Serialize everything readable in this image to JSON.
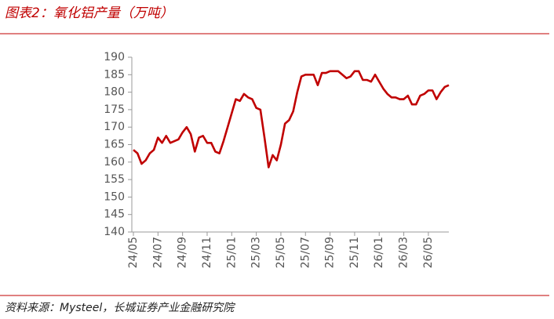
{
  "chart_data": {
    "type": "line",
    "title": "图表2：氧化铝产量（万吨）",
    "source": "资料来源：Mysteel，长城证券产业金融研究院",
    "categories": [
      "24/05",
      null,
      null,
      null,
      null,
      null,
      "24/07",
      null,
      null,
      null,
      null,
      null,
      "24/09",
      null,
      null,
      null,
      null,
      null,
      "24/11",
      null,
      null,
      null,
      null,
      null,
      "25/01",
      null,
      null,
      null,
      null,
      null,
      "25/03",
      null,
      null,
      null,
      null,
      null,
      "25/05",
      null,
      null,
      null,
      null,
      null,
      "25/07",
      null,
      null,
      null,
      null,
      null,
      "25/09",
      null,
      null,
      null,
      null,
      null,
      "25/11",
      null,
      null,
      null,
      null,
      null,
      "26/01",
      null,
      null,
      null,
      null,
      null,
      "26/03",
      null,
      null,
      null,
      null,
      null,
      "26/05",
      null,
      null,
      null,
      null,
      null
    ],
    "values": [
      163.5,
      162.5,
      159.5,
      160.5,
      162.5,
      163.5,
      167,
      165.5,
      167.5,
      165.5,
      166,
      166.5,
      168.5,
      170,
      168,
      163,
      167,
      167.5,
      165.5,
      165.5,
      163,
      162.5,
      166,
      170,
      174,
      178,
      177.5,
      179.5,
      178.5,
      178,
      175.5,
      175,
      167,
      158.5,
      162,
      160.5,
      165,
      171,
      172,
      174.5,
      180,
      184.5,
      185,
      185,
      185,
      182,
      185.5,
      185.5,
      186,
      186,
      186,
      185,
      184,
      184.5,
      186,
      186,
      183.5,
      183.5,
      183,
      185,
      183,
      181,
      179.5,
      178.5,
      178.5,
      178,
      178,
      179,
      176.5,
      176.5,
      179,
      179.5,
      180.5,
      180.5,
      178,
      180,
      181.5,
      182
    ],
    "color": "#c00000",
    "ylim": [
      140,
      190
    ],
    "yticks": [
      140,
      145,
      150,
      155,
      160,
      165,
      170,
      175,
      180,
      185,
      190
    ]
  }
}
